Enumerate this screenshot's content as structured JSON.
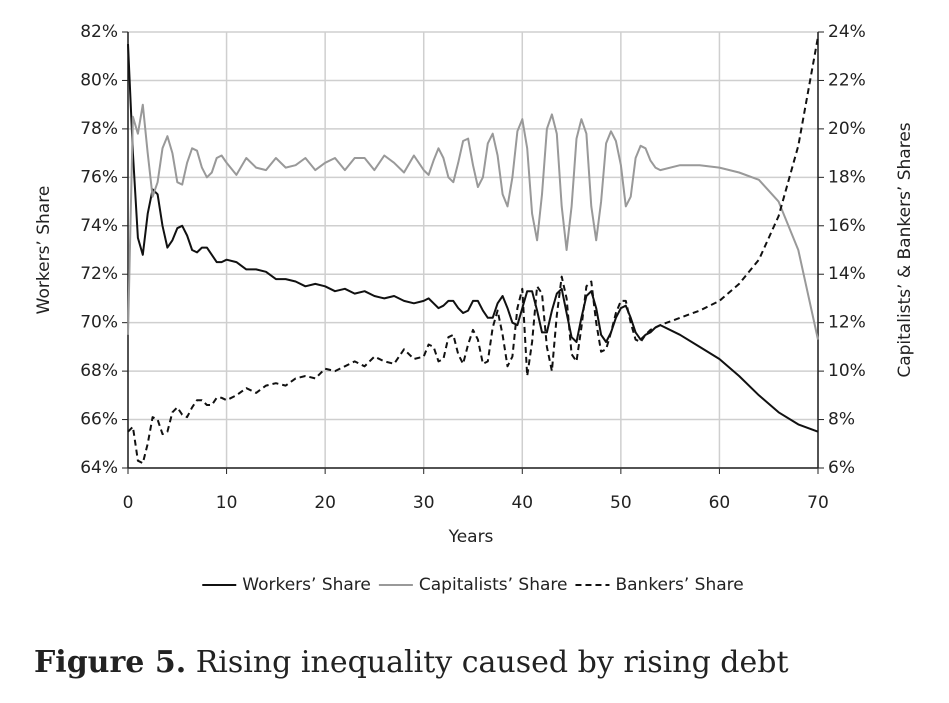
{
  "chart_data": {
    "type": "line",
    "x_label": "Years",
    "y_label": "Workers’ Share",
    "y2_label": "Capitalists’ & Bankers’ Shares",
    "xlim": [
      0,
      70
    ],
    "xticks": [
      0,
      10,
      20,
      30,
      40,
      50,
      60,
      70
    ],
    "ylim": [
      64,
      82
    ],
    "yticks": [
      {
        "value": 64,
        "label": "64%"
      },
      {
        "value": 66,
        "label": "66%"
      },
      {
        "value": 68,
        "label": "68%"
      },
      {
        "value": 70,
        "label": "70%"
      },
      {
        "value": 72,
        "label": "72%"
      },
      {
        "value": 74,
        "label": "74%"
      },
      {
        "value": 76,
        "label": "76%"
      },
      {
        "value": 78,
        "label": "78%"
      },
      {
        "value": 80,
        "label": "80%"
      },
      {
        "value": 82,
        "label": "82%"
      }
    ],
    "y2lim": [
      6,
      24
    ],
    "y2ticks": [
      {
        "value": 6,
        "label": "6%"
      },
      {
        "value": 8,
        "label": "8%"
      },
      {
        "value": 10,
        "label": "10%"
      },
      {
        "value": 12,
        "label": "12%"
      },
      {
        "value": 14,
        "label": "14%"
      },
      {
        "value": 16,
        "label": "16%"
      },
      {
        "value": 18,
        "label": "18%"
      },
      {
        "value": 20,
        "label": "20%"
      },
      {
        "value": 22,
        "label": "22%"
      },
      {
        "value": 24,
        "label": "24%"
      }
    ],
    "grid": true,
    "legend": "bottom",
    "x": [
      0,
      0.5,
      1,
      1.5,
      2,
      2.5,
      3,
      3.5,
      4,
      4.5,
      5,
      5.5,
      6,
      6.5,
      7,
      7.5,
      8,
      8.5,
      9,
      9.5,
      10,
      11,
      12,
      13,
      14,
      15,
      16,
      17,
      18,
      19,
      20,
      21,
      22,
      23,
      24,
      25,
      26,
      27,
      28,
      29,
      30,
      30.5,
      31,
      31.5,
      32,
      32.5,
      33,
      33.5,
      34,
      34.5,
      35,
      35.5,
      36,
      36.5,
      37,
      37.5,
      38,
      38.5,
      39,
      39.5,
      40,
      40.5,
      41,
      41.5,
      42,
      42.5,
      43,
      43.5,
      44,
      44.5,
      45,
      45.5,
      46,
      46.5,
      47,
      47.5,
      48,
      48.5,
      49,
      49.5,
      50,
      50.5,
      51,
      51.5,
      52,
      52.5,
      53,
      53.5,
      54,
      56,
      58,
      60,
      62,
      64,
      66,
      68,
      70
    ],
    "series": [
      {
        "name": "Workers’ Share",
        "color": "#111111",
        "line_style": "solid",
        "axis": "y",
        "values": [
          81.5,
          77,
          73.5,
          72.8,
          74.5,
          75.5,
          75.3,
          74,
          73.1,
          73.4,
          73.9,
          74.0,
          73.6,
          73.0,
          72.9,
          73.1,
          73.1,
          72.8,
          72.5,
          72.5,
          72.6,
          72.5,
          72.2,
          72.2,
          72.1,
          71.8,
          71.8,
          71.7,
          71.5,
          71.6,
          71.5,
          71.3,
          71.4,
          71.2,
          71.3,
          71.1,
          71.0,
          71.1,
          70.9,
          70.8,
          70.9,
          71.0,
          70.8,
          70.6,
          70.7,
          70.9,
          70.9,
          70.6,
          70.4,
          70.5,
          70.9,
          70.9,
          70.5,
          70.2,
          70.2,
          70.8,
          71.1,
          70.6,
          70.0,
          69.9,
          70.6,
          71.3,
          71.3,
          70.5,
          69.6,
          69.6,
          70.5,
          71.2,
          71.4,
          70.4,
          69.4,
          69.2,
          70.2,
          71.1,
          71.3,
          70.6,
          69.5,
          69.2,
          69.6,
          70.2,
          70.6,
          70.7,
          70.2,
          69.6,
          69.3,
          69.5,
          69.6,
          69.8,
          69.9,
          69.5,
          69.0,
          68.5,
          67.8,
          67.0,
          66.3,
          65.8,
          65.5
        ]
      },
      {
        "name": "Capitalists’ Share",
        "color": "#999999",
        "line_style": "solid",
        "axis": "y2",
        "values": [
          11.5,
          20.5,
          19.8,
          21.0,
          19.0,
          17.2,
          17.8,
          19.2,
          19.7,
          19.0,
          17.8,
          17.7,
          18.6,
          19.2,
          19.1,
          18.4,
          18.0,
          18.2,
          18.8,
          18.9,
          18.6,
          18.1,
          18.8,
          18.4,
          18.3,
          18.8,
          18.4,
          18.5,
          18.8,
          18.3,
          18.6,
          18.8,
          18.3,
          18.8,
          18.8,
          18.3,
          18.9,
          18.6,
          18.2,
          18.9,
          18.3,
          18.1,
          18.7,
          19.2,
          18.8,
          18.0,
          17.8,
          18.6,
          19.5,
          19.6,
          18.5,
          17.6,
          18.0,
          19.4,
          19.8,
          18.9,
          17.3,
          16.8,
          18.0,
          19.9,
          20.4,
          19.2,
          16.5,
          15.4,
          17.3,
          20.0,
          20.6,
          19.8,
          16.8,
          15.0,
          16.8,
          19.6,
          20.4,
          19.8,
          16.8,
          15.4,
          17.0,
          19.4,
          19.9,
          19.5,
          18.5,
          16.8,
          17.2,
          18.8,
          19.3,
          19.2,
          18.7,
          18.4,
          18.3,
          18.5,
          18.5,
          18.4,
          18.2,
          17.9,
          17.0,
          15.0,
          11.3
        ]
      },
      {
        "name": "Bankers’ Share",
        "color": "#111111",
        "line_style": "dashed",
        "axis": "y2",
        "values": [
          7.5,
          7.7,
          6.3,
          6.2,
          7.0,
          8.1,
          8.0,
          7.4,
          7.5,
          8.3,
          8.5,
          8.2,
          8.1,
          8.5,
          8.8,
          8.8,
          8.6,
          8.6,
          8.9,
          8.9,
          8.8,
          9.0,
          9.3,
          9.1,
          9.4,
          9.5,
          9.4,
          9.7,
          9.8,
          9.7,
          10.1,
          10.0,
          10.2,
          10.4,
          10.2,
          10.6,
          10.4,
          10.3,
          10.9,
          10.5,
          10.6,
          11.1,
          11.0,
          10.4,
          10.5,
          11.4,
          11.5,
          10.7,
          10.3,
          11.1,
          11.7,
          11.3,
          10.3,
          10.4,
          11.8,
          12.5,
          11.5,
          10.2,
          10.6,
          12.6,
          13.4,
          9.8,
          11.2,
          13.5,
          13.2,
          11.0,
          10.0,
          12.3,
          13.9,
          13.0,
          10.7,
          10.4,
          11.8,
          13.5,
          13.7,
          12.0,
          10.8,
          10.9,
          11.6,
          12.4,
          12.9,
          12.9,
          12.0,
          11.3,
          11.2,
          11.5,
          11.7,
          11.8,
          11.9,
          12.2,
          12.5,
          12.9,
          13.6,
          14.6,
          16.4,
          19.3,
          23.8
        ]
      }
    ]
  },
  "figure": {
    "label": "Figure 5.",
    "caption": "Rising inequality caused by rising debt"
  }
}
